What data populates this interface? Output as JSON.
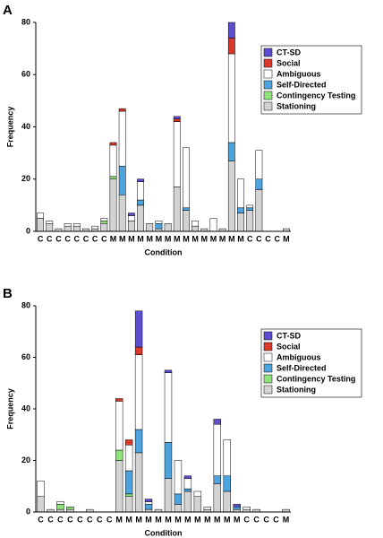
{
  "chart_data": [
    {
      "type": "stacked_bar",
      "panel": "A",
      "xlabel": "Condition",
      "ylabel": "Frequency",
      "categories": [
        "C",
        "C",
        "C",
        "C",
        "C",
        "C",
        "C",
        "C",
        "M",
        "M",
        "M",
        "M",
        "M",
        "M",
        "M",
        "M",
        "M",
        "M",
        "M",
        "M",
        "M",
        "M",
        "M",
        "C",
        "C",
        "C",
        "C",
        "M"
      ],
      "ylim": [
        0,
        80
      ],
      "yticks": [
        0,
        20,
        40,
        60,
        80
      ],
      "legend": "upper right",
      "series": [
        {
          "name": "Stationing",
          "color": "#d3d3d3",
          "values": [
            5,
            3,
            1,
            2,
            2,
            1,
            1,
            3,
            20,
            14,
            4,
            10,
            3,
            1,
            3,
            17,
            8,
            2,
            1,
            0,
            1,
            27,
            7,
            8,
            16,
            0,
            0,
            1
          ]
        },
        {
          "name": "Contingency Testing",
          "color": "#90e37a",
          "values": [
            0,
            0,
            0,
            0,
            0,
            0,
            0,
            1,
            1,
            0,
            0,
            0,
            0,
            0,
            0,
            0,
            0,
            0,
            0,
            0,
            0,
            0,
            0,
            0,
            0,
            0,
            0,
            0
          ]
        },
        {
          "name": "Self-Directed",
          "color": "#4ca3dd",
          "values": [
            0,
            0,
            0,
            0,
            0,
            0,
            0,
            0,
            0,
            11,
            0,
            2,
            0,
            2,
            0,
            0,
            1,
            0,
            0,
            0,
            0,
            7,
            2,
            1,
            4,
            0,
            0,
            0
          ]
        },
        {
          "name": "Ambiguous",
          "color": "#ffffff",
          "values": [
            2,
            1,
            0,
            1,
            1,
            0,
            1,
            1,
            12,
            21,
            2,
            7,
            0,
            1,
            0,
            25,
            23,
            2,
            0,
            5,
            0,
            34,
            11,
            1,
            11,
            0,
            0,
            0
          ]
        },
        {
          "name": "Social",
          "color": "#d9382a",
          "values": [
            0,
            0,
            0,
            0,
            0,
            0,
            0,
            0,
            1,
            1,
            0,
            0,
            0,
            0,
            0,
            1,
            0,
            0,
            0,
            0,
            0,
            6,
            0,
            0,
            0,
            0,
            0,
            0
          ]
        },
        {
          "name": "CT-SD",
          "color": "#5b4fcf",
          "values": [
            0,
            0,
            0,
            0,
            0,
            0,
            0,
            0,
            0,
            0,
            1,
            1,
            0,
            0,
            0,
            1,
            0,
            0,
            0,
            0,
            0,
            6,
            0,
            0,
            0,
            0,
            0,
            0
          ]
        }
      ]
    },
    {
      "type": "stacked_bar",
      "panel": "B",
      "xlabel": "Condition",
      "ylabel": "Frequency",
      "categories": [
        "C",
        "C",
        "C",
        "C",
        "C",
        "C",
        "C",
        "C",
        "M",
        "M",
        "M",
        "M",
        "M",
        "M",
        "M",
        "M",
        "M",
        "M",
        "M",
        "M",
        "M",
        "C",
        "C",
        "C",
        "C",
        "M"
      ],
      "ylim": [
        0,
        80
      ],
      "yticks": [
        0,
        20,
        40,
        60,
        80
      ],
      "legend": "upper right",
      "series": [
        {
          "name": "Stationing",
          "color": "#d3d3d3",
          "values": [
            6,
            1,
            1,
            1,
            0,
            1,
            0,
            0,
            20,
            6,
            23,
            1,
            1,
            13,
            3,
            8,
            6,
            1,
            11,
            8,
            1,
            1,
            1,
            0,
            0,
            1
          ]
        },
        {
          "name": "Contingency Testing",
          "color": "#90e37a",
          "values": [
            0,
            0,
            2,
            1,
            0,
            0,
            0,
            0,
            4,
            1,
            0,
            0,
            0,
            0,
            0,
            0,
            0,
            0,
            0,
            0,
            0,
            0,
            0,
            0,
            0,
            0
          ]
        },
        {
          "name": "Self-Directed",
          "color": "#4ca3dd",
          "values": [
            0,
            0,
            0,
            0,
            0,
            0,
            0,
            0,
            0,
            9,
            9,
            2,
            0,
            14,
            4,
            1,
            0,
            0,
            3,
            6,
            1,
            0,
            0,
            0,
            0,
            0
          ]
        },
        {
          "name": "Ambiguous",
          "color": "#ffffff",
          "values": [
            6,
            0,
            1,
            0,
            0,
            0,
            0,
            0,
            19,
            10,
            29,
            1,
            0,
            27,
            13,
            4,
            2,
            1,
            20,
            14,
            0,
            1,
            0,
            0,
            0,
            0
          ]
        },
        {
          "name": "Social",
          "color": "#d9382a",
          "values": [
            0,
            0,
            0,
            0,
            0,
            0,
            0,
            0,
            1,
            2,
            3,
            0,
            0,
            0,
            0,
            0,
            0,
            0,
            0,
            0,
            0,
            0,
            0,
            0,
            0,
            0
          ]
        },
        {
          "name": "CT-SD",
          "color": "#5b4fcf",
          "values": [
            0,
            0,
            0,
            0,
            0,
            0,
            0,
            0,
            0,
            0,
            14,
            1,
            0,
            1,
            0,
            1,
            0,
            0,
            2,
            0,
            1,
            0,
            0,
            0,
            0,
            0
          ]
        }
      ]
    }
  ]
}
